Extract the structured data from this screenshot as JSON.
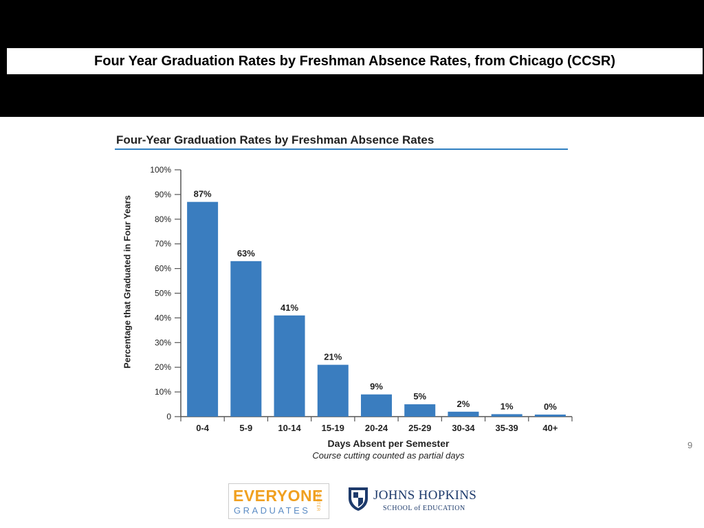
{
  "slide": {
    "title": "Four Year Graduation Rates by Freshman Absence Rates, from Chicago (CCSR)",
    "page_number": "9"
  },
  "colors": {
    "bar": "#3a7dbf",
    "axis": "#555555",
    "title_rule": "#2f7fc1"
  },
  "chart_data": {
    "type": "bar",
    "title": "Four-Year Graduation Rates by Freshman Absence Rates",
    "xlabel": "Days Absent per Semester",
    "xlabel_note": "Course cutting counted as partial days",
    "ylabel": "Percentage that Graduated in Four Years",
    "categories": [
      "0-4",
      "5-9",
      "10-14",
      "15-19",
      "20-24",
      "25-29",
      "30-34",
      "35-39",
      "40+"
    ],
    "values": [
      87,
      63,
      41,
      21,
      9,
      5,
      2,
      1,
      0
    ],
    "value_labels": [
      "87%",
      "63%",
      "41%",
      "21%",
      "9%",
      "5%",
      "2%",
      "1%",
      "0%"
    ],
    "ylim": [
      0,
      100
    ],
    "yticks": [
      "0",
      "10%",
      "20%",
      "30%",
      "40%",
      "50%",
      "60%",
      "70%",
      "80%",
      "90%",
      "100%"
    ],
    "grid": false,
    "legend": "none"
  },
  "logos": {
    "everyone_graduates": {
      "line1": "EVERYONE",
      "line2": "GRADUATES",
      "side": "CENTER"
    },
    "johns_hopkins": {
      "name": "JOHNS HOPKINS",
      "school": "SCHOOL of EDUCATION"
    }
  }
}
